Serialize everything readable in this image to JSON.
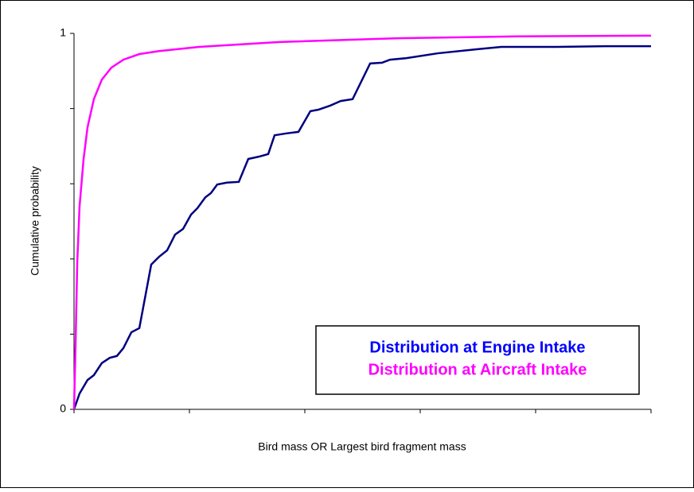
{
  "chart_data": {
    "type": "line",
    "xlabel": "Bird mass OR Largest bird fragment mass",
    "ylabel": "Cumulative probability",
    "xlim": [
      0,
      5
    ],
    "xminorticks": [
      0,
      1,
      2,
      3,
      4,
      5
    ],
    "ylim": [
      0,
      1
    ],
    "yticks": [
      0,
      1
    ],
    "yminorticks": [
      0.2,
      0.4,
      0.6,
      0.8
    ],
    "grid": false,
    "legend": "lower right",
    "series": [
      {
        "name": "Distribution at Engine Intake",
        "color": "#000080",
        "legend_color": "#0000ff",
        "x": [
          0,
          0.048,
          0.117,
          0.172,
          0.241,
          0.31,
          0.372,
          0.428,
          0.497,
          0.566,
          0.669,
          0.738,
          0.807,
          0.876,
          0.945,
          1.014,
          1.069,
          1.138,
          1.186,
          1.241,
          1.324,
          1.428,
          1.51,
          1.6,
          1.683,
          1.738,
          1.841,
          1.945,
          2.048,
          2.117,
          2.221,
          2.31,
          2.414,
          2.566,
          2.669,
          2.738,
          2.876,
          3.152,
          3.497,
          3.703,
          4.186,
          4.6,
          5
        ],
        "values": [
          0,
          0.042,
          0.078,
          0.091,
          0.123,
          0.137,
          0.142,
          0.163,
          0.205,
          0.216,
          0.385,
          0.406,
          0.423,
          0.465,
          0.48,
          0.518,
          0.535,
          0.564,
          0.575,
          0.598,
          0.603,
          0.605,
          0.666,
          0.672,
          0.679,
          0.729,
          0.734,
          0.738,
          0.793,
          0.797,
          0.808,
          0.82,
          0.825,
          0.92,
          0.922,
          0.93,
          0.934,
          0.947,
          0.958,
          0.964,
          0.964,
          0.966,
          0.966
        ]
      },
      {
        "name": "Distribution at Aircraft Intake",
        "color": "#ff00ff",
        "legend_color": "#ff00ff",
        "x": [
          0,
          0.014,
          0.028,
          0.048,
          0.083,
          0.117,
          0.172,
          0.241,
          0.324,
          0.428,
          0.566,
          0.738,
          1.083,
          1.779,
          2.807,
          3.841,
          5
        ],
        "values": [
          0,
          0.18,
          0.39,
          0.54,
          0.666,
          0.75,
          0.825,
          0.877,
          0.909,
          0.93,
          0.945,
          0.953,
          0.964,
          0.977,
          0.987,
          0.992,
          0.994
        ]
      }
    ]
  }
}
